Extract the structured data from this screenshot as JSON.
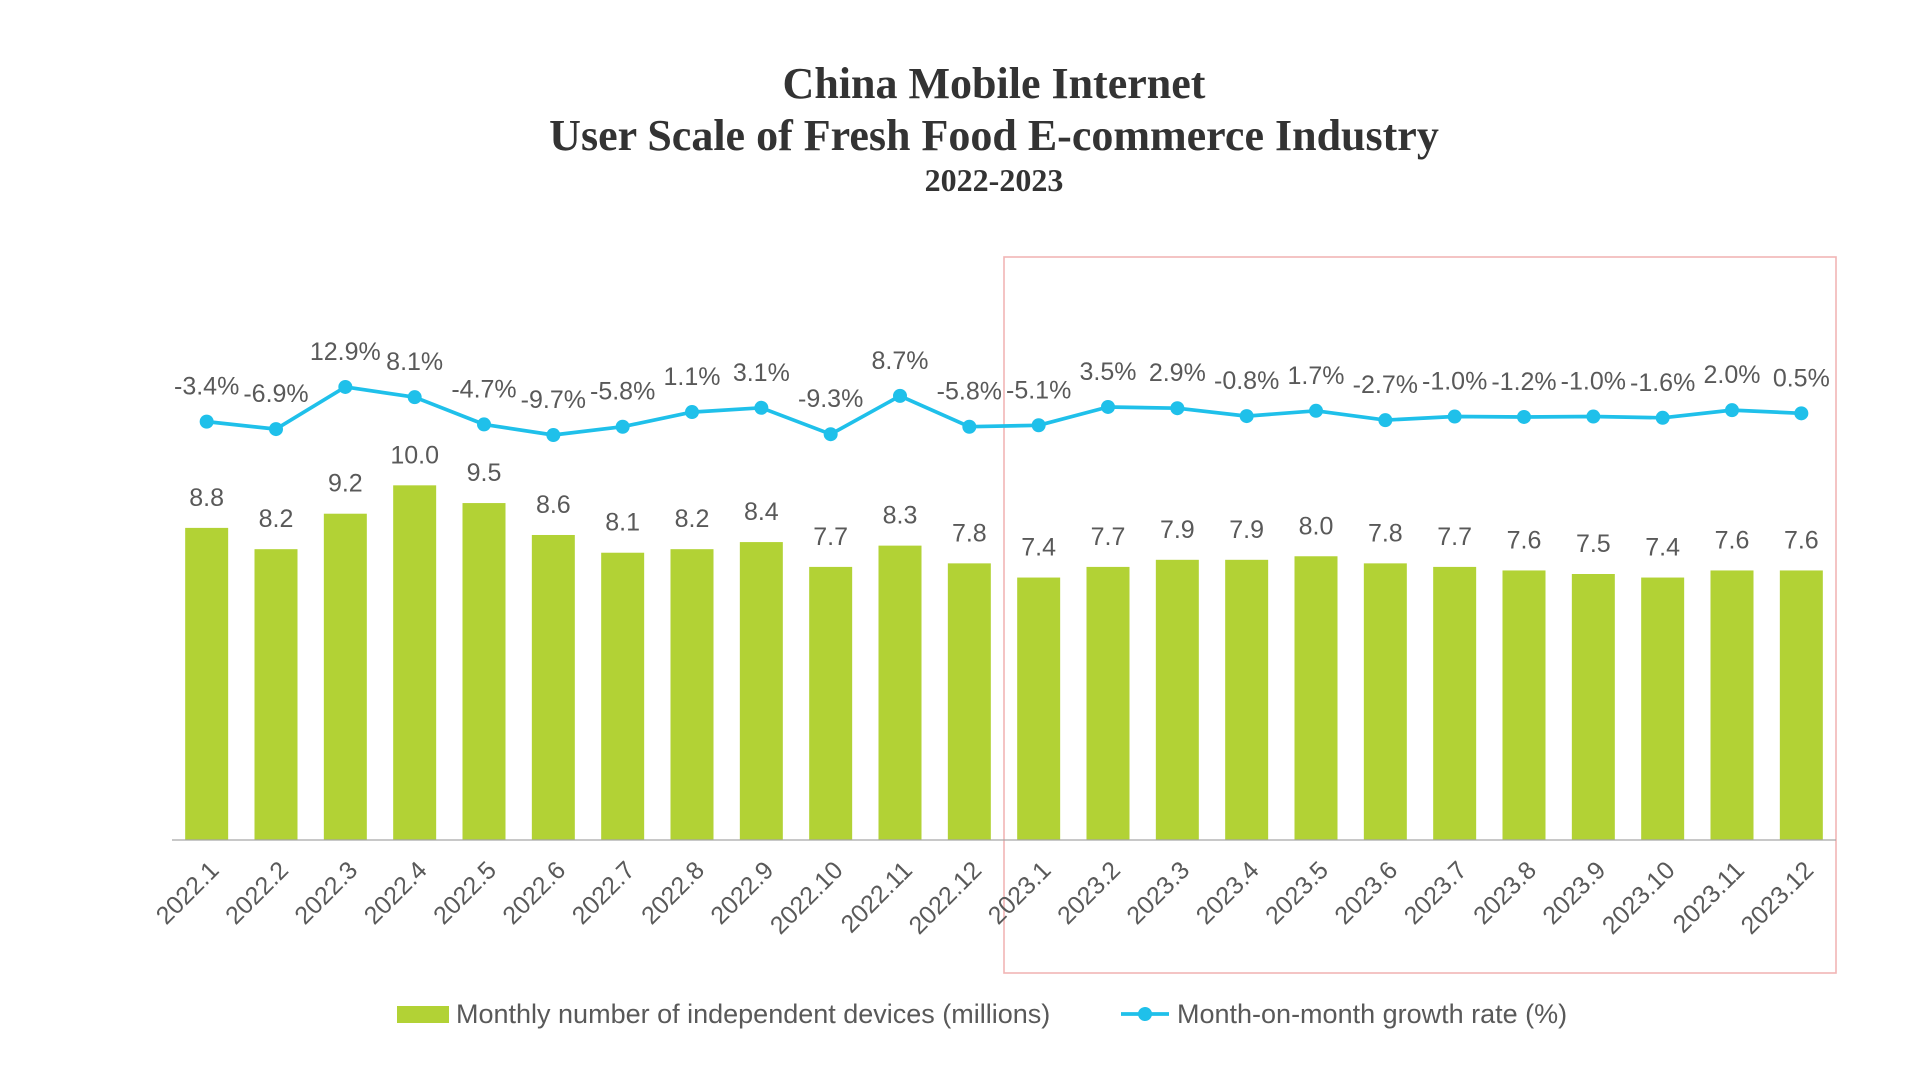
{
  "chart_data": {
    "type": "bar",
    "title": [
      "China Mobile Internet",
      "User Scale of Fresh Food E-commerce Industry"
    ],
    "subtitle": "2022-2023",
    "categories": [
      "2022.1",
      "2022.2",
      "2022.3",
      "2022.4",
      "2022.5",
      "2022.6",
      "2022.7",
      "2022.8",
      "2022.9",
      "2022.10",
      "2022.11",
      "2022.12",
      "2023.1",
      "2023.2",
      "2023.3",
      "2023.4",
      "2023.5",
      "2023.6",
      "2023.7",
      "2023.8",
      "2023.9",
      "2023.10",
      "2023.11",
      "2023.12"
    ],
    "series": [
      {
        "name": "Monthly number of independent devices (millions)",
        "type": "bar",
        "values": [
          8.8,
          8.2,
          9.2,
          10.0,
          9.5,
          8.6,
          8.1,
          8.2,
          8.4,
          7.7,
          8.3,
          7.8,
          7.4,
          7.7,
          7.9,
          7.9,
          8.0,
          7.8,
          7.7,
          7.6,
          7.5,
          7.4,
          7.6,
          7.6
        ],
        "labels": [
          "8.8",
          "8.2",
          "9.2",
          "10.0",
          "9.5",
          "8.6",
          "8.1",
          "8.2",
          "8.4",
          "7.7",
          "8.3",
          "7.8",
          "7.4",
          "7.7",
          "7.9",
          "7.9",
          "8.0",
          "7.8",
          "7.7",
          "7.6",
          "7.5",
          "7.4",
          "7.6",
          "7.6"
        ],
        "color": "#b2d235"
      },
      {
        "name": "Month-on-month growth rate (%)",
        "type": "line",
        "secondary_axis": true,
        "values": [
          -3.4,
          -6.9,
          12.9,
          8.1,
          -4.7,
          -9.7,
          -5.8,
          1.1,
          3.1,
          -9.3,
          8.7,
          -5.8,
          -5.1,
          3.5,
          2.9,
          -0.8,
          1.7,
          -2.7,
          -1.0,
          -1.2,
          -1.0,
          -1.6,
          2.0,
          0.5
        ],
        "labels": [
          "-3.4%",
          "-6.9%",
          "12.9%",
          "8.1%",
          "-4.7%",
          "-9.7%",
          "-5.8%",
          "1.1%",
          "3.1%",
          "-9.3%",
          "8.7%",
          "-5.8%",
          "-5.1%",
          "3.5%",
          "2.9%",
          "-0.8%",
          "1.7%",
          "-2.7%",
          "-1.0%",
          "-1.2%",
          "-1.0%",
          "-1.6%",
          "2.0%",
          "0.5%"
        ],
        "color": "#1fc0ea"
      }
    ],
    "ylim": [
      0,
      15
    ],
    "y2lim": [
      -200,
      50
    ],
    "grid": false,
    "legend": "bottom",
    "axis_color": "#a6a6a6",
    "highlight": {
      "start_index": 12,
      "end_index": 23,
      "color": "#f2b5b5"
    }
  }
}
